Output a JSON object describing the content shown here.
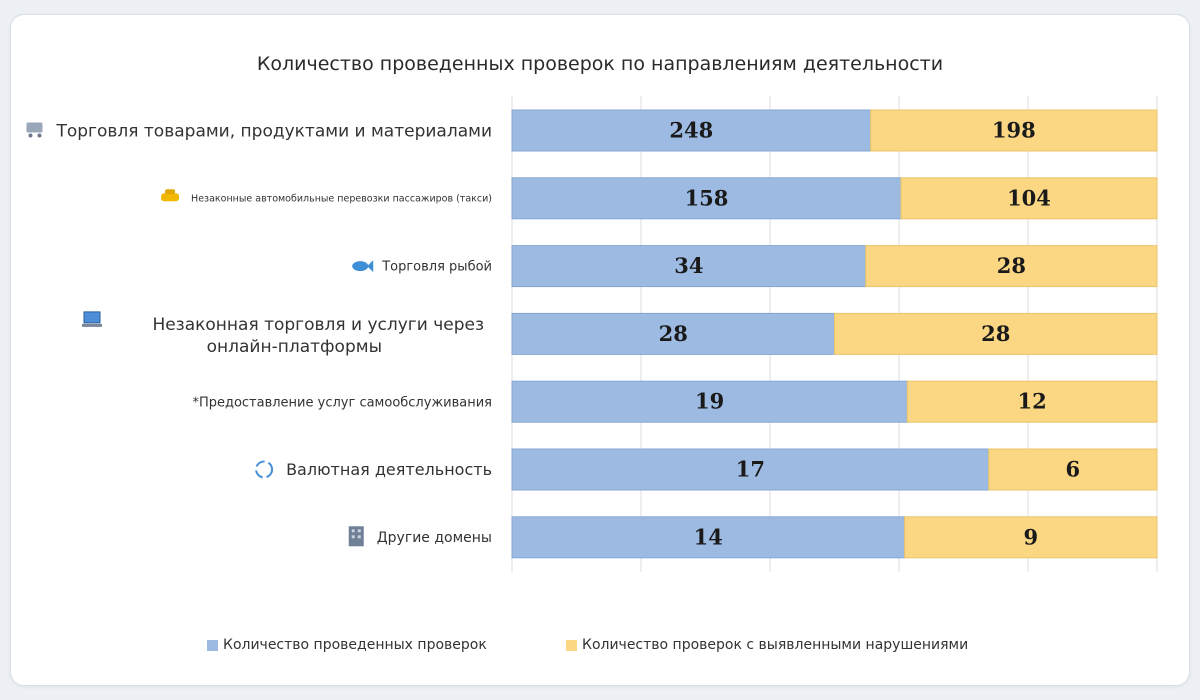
{
  "chart_data": {
    "type": "bar",
    "orientation": "horizontal",
    "stacked": true,
    "title": "Количество проведенных проверок по направлениям деятельности",
    "categories": [
      {
        "label": "Торговля товарами, продуктами и материалами",
        "icon": "shopping-cart-icon"
      },
      {
        "label": "Незаконные автомобильные перевозки пассажиров (такси)",
        "icon": "taxi-icon"
      },
      {
        "label": "Торговля рыбой",
        "icon": "fish-icon"
      },
      {
        "label": "Незаконная торговля и услуги через онлайн-платформы",
        "icon": "laptop-icon"
      },
      {
        "label": "*Предоставление услуг самообслуживания",
        "icon": ""
      },
      {
        "label": "Валютная деятельность",
        "icon": "currency-exchange-icon"
      },
      {
        "label": "Другие домены",
        "icon": "building-icon"
      }
    ],
    "series": [
      {
        "name": "Количество проведенных проверок",
        "color": "#9dbbe2",
        "values": [
          248,
          158,
          34,
          28,
          19,
          17,
          14
        ]
      },
      {
        "name": "Количество проверок с выявленными нарушениями",
        "color": "#fbd784",
        "values": [
          198,
          104,
          28,
          28,
          12,
          6,
          9
        ]
      }
    ],
    "grid": true,
    "legend_position": "bottom"
  }
}
